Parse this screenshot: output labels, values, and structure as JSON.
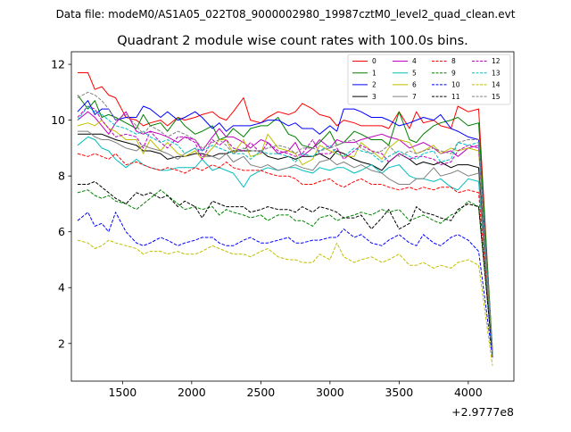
{
  "figure": {
    "suptitle": "Data file: modeM0/AS1A05_022T08_9000002980_19987cztM0_level2_quad_clean.evt",
    "title": "Quadrant 2 module wise count rates with 100.0s bins.",
    "x_offset_label": "+2.9777e8"
  },
  "chart_data": {
    "type": "line",
    "title": "Quadrant 2 module wise count rates with 100.0s bins.",
    "xlabel": "",
    "ylabel": "",
    "x_offset": "+2.9777e8",
    "xlim": [
      1130,
      4330
    ],
    "ylim": [
      0.65,
      12.45
    ],
    "xticks": [
      1500,
      2000,
      2500,
      3000,
      3500,
      4000
    ],
    "yticks": [
      2,
      4,
      6,
      8,
      10,
      12
    ],
    "grid": false,
    "legend_location": "top-right",
    "x": [
      1175,
      1250,
      1300,
      1350,
      1400,
      1450,
      1525,
      1600,
      1650,
      1700,
      1775,
      1825,
      1900,
      1950,
      2025,
      2075,
      2150,
      2200,
      2250,
      2300,
      2375,
      2425,
      2500,
      2550,
      2625,
      2700,
      2750,
      2800,
      2875,
      2925,
      3000,
      3050,
      3100,
      3175,
      3225,
      3300,
      3375,
      3425,
      3500,
      3575,
      3625,
      3675,
      3750,
      3800,
      3875,
      3925,
      4000,
      4075,
      4175
    ],
    "series": [
      {
        "name": "0",
        "color": "#ff0000",
        "dash": "solid",
        "values": [
          11.7,
          11.7,
          11.1,
          11.2,
          10.9,
          10.8,
          10.1,
          10.0,
          9.8,
          9.9,
          10.0,
          9.8,
          10.1,
          10.0,
          10.1,
          10.2,
          10.3,
          10.1,
          10.0,
          10.3,
          10.8,
          10.0,
          9.9,
          10.1,
          10.3,
          10.2,
          10.3,
          10.6,
          10.4,
          10.2,
          10.1,
          9.8,
          10.0,
          9.9,
          9.8,
          9.8,
          9.8,
          9.7,
          10.3,
          9.7,
          10.3,
          9.9,
          10.0,
          9.8,
          9.7,
          10.5,
          10.3,
          10.4,
          1.6
        ]
      },
      {
        "name": "1",
        "color": "#008000",
        "dash": "solid",
        "values": [
          10.9,
          10.4,
          10.7,
          10.1,
          10.2,
          10.1,
          9.9,
          9.7,
          10.2,
          9.8,
          9.9,
          9.6,
          10.1,
          9.8,
          9.5,
          9.6,
          9.8,
          9.3,
          9.4,
          9.7,
          9.4,
          9.7,
          9.8,
          9.8,
          10.1,
          9.5,
          9.4,
          9.1,
          9.0,
          9.2,
          9.6,
          9.1,
          9.2,
          9.6,
          9.5,
          9.3,
          9.3,
          9.1,
          10.3,
          9.3,
          9.2,
          9.5,
          9.8,
          9.9,
          10.0,
          10.1,
          9.8,
          9.9,
          1.8
        ]
      },
      {
        "name": "2",
        "color": "#0000ff",
        "dash": "solid",
        "values": [
          10.3,
          10.7,
          10.2,
          10.4,
          10.4,
          10.0,
          10.1,
          10.1,
          10.5,
          10.4,
          10.1,
          10.3,
          10.0,
          10.1,
          10.3,
          10.1,
          9.7,
          9.9,
          9.6,
          9.8,
          9.8,
          9.8,
          9.9,
          10.0,
          10.0,
          9.8,
          9.9,
          9.7,
          9.7,
          9.5,
          9.8,
          9.6,
          10.4,
          10.4,
          10.3,
          10.1,
          10.1,
          10.0,
          9.8,
          9.9,
          10.0,
          10.1,
          10.0,
          10.2,
          9.7,
          9.6,
          9.4,
          9.3,
          1.5
        ]
      },
      {
        "name": "3",
        "color": "#000000",
        "dash": "solid",
        "values": [
          9.5,
          9.5,
          9.5,
          9.5,
          9.4,
          9.3,
          9.2,
          9.1,
          8.9,
          8.9,
          8.8,
          8.6,
          8.7,
          8.7,
          8.8,
          8.8,
          8.7,
          8.8,
          8.8,
          8.9,
          8.9,
          8.9,
          8.9,
          8.7,
          8.6,
          8.7,
          8.6,
          8.7,
          8.7,
          8.8,
          8.6,
          8.9,
          8.8,
          8.6,
          8.5,
          8.4,
          8.2,
          8.5,
          8.8,
          8.6,
          8.4,
          8.5,
          8.4,
          8.5,
          8.3,
          8.4,
          8.4,
          8.3,
          1.7
        ]
      },
      {
        "name": "4",
        "color": "#bf00bf",
        "dash": "solid",
        "values": [
          10.0,
          10.3,
          10.1,
          9.8,
          9.5,
          9.9,
          10.3,
          9.6,
          9.5,
          9.6,
          9.5,
          9.4,
          9.2,
          9.4,
          9.3,
          8.9,
          9.4,
          9.7,
          9.4,
          9.4,
          9.2,
          9.0,
          9.3,
          9.2,
          8.8,
          8.9,
          9.2,
          8.7,
          9.0,
          9.3,
          9.0,
          9.3,
          9.2,
          9.2,
          9.3,
          9.4,
          9.5,
          9.4,
          9.3,
          9.0,
          9.1,
          9.2,
          9.0,
          8.8,
          8.9,
          8.7,
          9.0,
          9.1,
          1.6
        ]
      },
      {
        "name": "5",
        "color": "#00bfbf",
        "dash": "solid",
        "values": [
          9.1,
          9.4,
          9.3,
          9.0,
          8.9,
          8.6,
          8.3,
          8.6,
          8.4,
          8.3,
          8.2,
          8.2,
          8.3,
          8.3,
          8.3,
          8.6,
          8.2,
          8.3,
          8.2,
          8.1,
          7.6,
          8.0,
          8.2,
          8.3,
          8.2,
          8.3,
          8.3,
          8.2,
          8.1,
          8.3,
          8.2,
          8.3,
          8.3,
          8.1,
          8.2,
          8.4,
          8.1,
          8.3,
          8.4,
          8.0,
          7.9,
          7.9,
          7.8,
          7.9,
          7.6,
          7.5,
          7.9,
          7.8,
          1.7
        ]
      },
      {
        "name": "6",
        "color": "#bfbf00",
        "dash": "solid",
        "values": [
          9.8,
          9.9,
          9.8,
          10.0,
          9.7,
          9.6,
          9.3,
          9.3,
          8.8,
          9.3,
          8.9,
          9.2,
          8.8,
          8.7,
          8.9,
          8.6,
          9.0,
          9.3,
          9.3,
          8.8,
          9.3,
          8.7,
          8.8,
          9.5,
          9.0,
          8.9,
          8.8,
          8.4,
          8.6,
          9.1,
          8.9,
          8.8,
          8.7,
          8.7,
          9.2,
          8.9,
          8.6,
          9.0,
          9.3,
          9.2,
          8.8,
          8.9,
          9.1,
          8.8,
          9.0,
          8.9,
          9.0,
          8.9,
          1.8
        ]
      },
      {
        "name": "7",
        "color": "#808080",
        "dash": "solid",
        "values": [
          9.6,
          9.6,
          9.4,
          9.3,
          9.3,
          9.2,
          9.0,
          8.9,
          9.1,
          9.0,
          8.9,
          8.8,
          8.6,
          8.8,
          9.0,
          8.7,
          8.7,
          8.6,
          8.8,
          8.5,
          8.7,
          8.4,
          8.3,
          8.4,
          8.2,
          8.3,
          8.4,
          8.3,
          8.2,
          8.5,
          8.6,
          8.4,
          8.5,
          8.3,
          8.4,
          8.2,
          8.1,
          7.9,
          7.7,
          7.7,
          7.9,
          7.9,
          8.3,
          8.0,
          8.1,
          8.2,
          8.0,
          8.1,
          1.6
        ]
      },
      {
        "name": "8",
        "color": "#ff0000",
        "dash": "dashed",
        "values": [
          8.8,
          8.7,
          8.8,
          8.7,
          8.6,
          8.8,
          8.4,
          8.5,
          8.4,
          8.3,
          8.2,
          8.3,
          8.2,
          8.1,
          8.3,
          8.2,
          8.4,
          8.3,
          8.5,
          8.3,
          8.2,
          8.2,
          8.2,
          8.1,
          8.0,
          8.0,
          7.9,
          7.7,
          7.7,
          7.8,
          7.9,
          7.7,
          7.6,
          7.8,
          7.9,
          7.7,
          7.7,
          7.6,
          7.5,
          7.6,
          7.5,
          7.6,
          7.5,
          7.6,
          7.6,
          7.4,
          7.5,
          7.4,
          1.5
        ]
      },
      {
        "name": "9",
        "color": "#008000",
        "dash": "dashed",
        "values": [
          7.4,
          7.5,
          7.3,
          7.2,
          7.3,
          7.1,
          7.0,
          6.8,
          7.0,
          7.2,
          7.5,
          7.3,
          7.0,
          6.8,
          6.9,
          6.8,
          6.9,
          6.6,
          6.8,
          6.7,
          6.6,
          6.5,
          6.6,
          6.4,
          6.6,
          6.6,
          6.4,
          6.4,
          6.2,
          6.5,
          6.6,
          6.4,
          6.5,
          6.6,
          6.7,
          6.6,
          6.8,
          6.7,
          6.8,
          6.4,
          6.5,
          6.6,
          6.4,
          6.3,
          6.6,
          6.7,
          7.1,
          6.9,
          1.6
        ]
      },
      {
        "name": "10",
        "color": "#0000ff",
        "dash": "dashed",
        "values": [
          6.4,
          6.7,
          6.2,
          6.3,
          6.0,
          6.7,
          6.0,
          5.6,
          5.5,
          5.6,
          5.8,
          5.7,
          5.5,
          5.6,
          5.7,
          5.8,
          5.8,
          5.6,
          5.5,
          5.5,
          5.7,
          5.8,
          5.6,
          5.6,
          5.7,
          5.8,
          5.6,
          5.6,
          5.7,
          5.7,
          5.8,
          5.8,
          6.1,
          5.8,
          5.9,
          5.6,
          5.5,
          5.7,
          5.9,
          5.6,
          5.5,
          5.9,
          5.6,
          5.5,
          5.8,
          5.9,
          5.7,
          5.3,
          1.5
        ]
      },
      {
        "name": "11",
        "color": "#000000",
        "dash": "dashed",
        "values": [
          7.7,
          7.7,
          7.8,
          7.6,
          7.4,
          7.2,
          7.0,
          7.4,
          7.3,
          7.4,
          7.2,
          7.3,
          6.9,
          7.1,
          6.9,
          6.5,
          7.1,
          7.0,
          6.9,
          6.9,
          6.9,
          6.7,
          6.8,
          6.9,
          6.8,
          6.8,
          6.7,
          6.9,
          6.7,
          6.9,
          6.8,
          6.7,
          6.5,
          6.5,
          6.6,
          6.1,
          6.5,
          6.8,
          6.1,
          6.3,
          6.9,
          6.7,
          6.6,
          6.5,
          6.4,
          6.8,
          7.0,
          6.9,
          1.6
        ]
      },
      {
        "name": "12",
        "color": "#bf00bf",
        "dash": "dashed",
        "values": [
          10.1,
          10.5,
          10.4,
          10.0,
          9.7,
          9.4,
          9.5,
          9.4,
          9.0,
          9.6,
          9.2,
          9.0,
          9.4,
          9.4,
          9.2,
          8.6,
          9.3,
          9.1,
          9.3,
          9.0,
          8.9,
          9.2,
          8.8,
          9.2,
          8.9,
          8.8,
          8.7,
          8.8,
          9.3,
          8.8,
          8.8,
          9.0,
          8.6,
          8.9,
          9.1,
          8.9,
          8.8,
          8.5,
          8.8,
          8.6,
          8.7,
          8.7,
          8.6,
          8.4,
          8.5,
          8.9,
          9.1,
          9.0,
          1.7
        ]
      },
      {
        "name": "13",
        "color": "#00bfbf",
        "dash": "dashed",
        "values": [
          10.0,
          10.5,
          10.3,
          10.2,
          10.0,
          9.8,
          9.7,
          9.5,
          9.6,
          9.4,
          9.2,
          9.3,
          9.1,
          8.8,
          9.0,
          8.9,
          9.1,
          9.0,
          8.9,
          8.8,
          8.8,
          8.6,
          8.9,
          8.8,
          8.8,
          8.7,
          8.5,
          8.8,
          8.7,
          8.9,
          9.1,
          8.8,
          8.7,
          9.0,
          8.9,
          8.8,
          8.5,
          8.7,
          8.9,
          8.7,
          8.6,
          8.8,
          8.9,
          8.5,
          8.6,
          9.2,
          9.1,
          9.2,
          1.6
        ]
      },
      {
        "name": "14",
        "color": "#bfbf00",
        "dash": "dashed",
        "values": [
          5.7,
          5.6,
          5.4,
          5.5,
          5.7,
          5.6,
          5.5,
          5.4,
          5.2,
          5.3,
          5.3,
          5.2,
          5.3,
          5.2,
          5.2,
          5.3,
          5.5,
          5.4,
          5.3,
          5.2,
          5.2,
          5.1,
          5.3,
          5.4,
          5.1,
          5.0,
          5.0,
          4.9,
          4.9,
          5.2,
          5.0,
          5.6,
          5.1,
          4.9,
          5.0,
          5.1,
          4.9,
          5.0,
          5.2,
          4.8,
          4.8,
          4.9,
          4.7,
          4.8,
          4.7,
          4.9,
          5.0,
          4.8,
          1.2
        ]
      },
      {
        "name": "15",
        "color": "#808080",
        "dash": "dashed",
        "values": [
          10.8,
          11.0,
          10.9,
          10.7,
          10.4,
          10.0,
          10.2,
          9.8,
          9.5,
          9.8,
          9.6,
          9.4,
          9.6,
          9.5,
          9.3,
          9.0,
          9.2,
          9.3,
          9.1,
          8.8,
          9.0,
          8.9,
          8.9,
          9.0,
          9.1,
          9.0,
          8.8,
          9.0,
          9.0,
          8.9,
          9.0,
          9.1,
          9.2,
          9.3,
          9.0,
          8.8,
          8.9,
          9.1,
          8.7,
          8.9,
          8.8,
          8.9,
          9.0,
          8.9,
          8.8,
          9.2,
          9.3,
          9.3,
          1.6
        ]
      }
    ]
  }
}
